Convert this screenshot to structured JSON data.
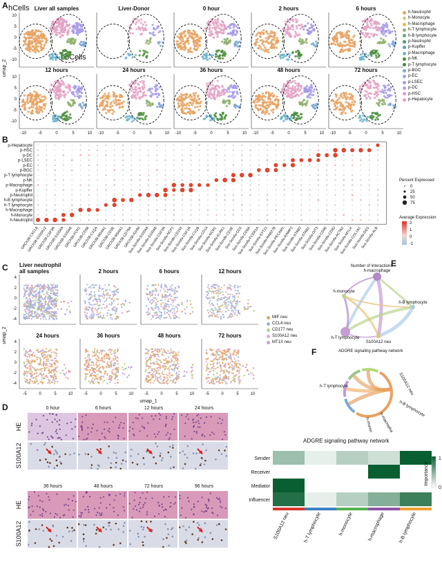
{
  "panelA": {
    "letter": "A",
    "hcells_label": "hCells",
    "pocells_label": "poCells",
    "titles": [
      "Liver all samples",
      "Liver-Donor",
      "0 hour",
      "2 hours",
      "6 hours",
      "12 hours",
      "24 hours",
      "36 hours",
      "48 hours",
      "72 hours"
    ],
    "ylabel": "umap_2",
    "yticks": [
      "10",
      "5",
      "0",
      "-5",
      "-10"
    ],
    "xticks": [
      "-10",
      "-5",
      "0",
      "5",
      "10"
    ],
    "legend": [
      {
        "label": "h-Neutrophil",
        "color": "#e8a262"
      },
      {
        "label": "h-Monocyte",
        "color": "#c6cf7c"
      },
      {
        "label": "h-Macrophage",
        "color": "#e7b94f"
      },
      {
        "label": "h-T lymphocyte",
        "color": "#8fb06d"
      },
      {
        "label": "h-B lymphocyte",
        "color": "#68a879"
      },
      {
        "label": "p-Neutrophil",
        "color": "#4f9a74"
      },
      {
        "label": "p-Kupffer",
        "color": "#5aa3b0"
      },
      {
        "label": "p-Macrophage",
        "color": "#6cb4cd"
      },
      {
        "label": "p-NK",
        "color": "#4f8e3f"
      },
      {
        "label": "p-T lymphocyte",
        "color": "#3f8a3a"
      },
      {
        "label": "p-BGC",
        "color": "#7fa9d8"
      },
      {
        "label": "p-EC",
        "color": "#95a7e4"
      },
      {
        "label": "p-LSEC",
        "color": "#a79be6"
      },
      {
        "label": "p-DC",
        "color": "#c09ae5"
      },
      {
        "label": "p-HSC",
        "color": "#d69bd8"
      },
      {
        "label": "p-Hepatocyte",
        "color": "#e3a2c4"
      }
    ]
  },
  "panelB": {
    "letter": "B",
    "rows": [
      "p-Hepatocyte",
      "p-HSC",
      "p-DC",
      "p-LSEC",
      "p-EC",
      "p-BGC",
      "p-T lymphocyte",
      "p-NK",
      "p-Macrophage",
      "p-Kupffer",
      "p-Neutrophil",
      "h-B lymphocyte",
      "h-T lymphocyte",
      "h-Macrophage",
      "h-Monocyte",
      "h-Neutrophil"
    ],
    "genes": [
      "GRCh38-CXCL8",
      "GRCh38-S100A12",
      "GRCh38-CSF3R",
      "GRCh38-S100A9",
      "GRCh38-S100A8",
      "GRCh38-FCN1",
      "GRCh38-CD68",
      "GRCh38-C1QA",
      "GRCh38-MS4A1",
      "GRCh38-CD3E",
      "GRCh38-MS4A1",
      "GRCh38-CD79A",
      "GRCh38-IGHM",
      "Sus-Scrofa-S100A9",
      "Sus-Scrofa-S100A8",
      "Sus-Scrofa-CSF3R",
      "Sus-Scrofa-NCF1",
      "Sus-Scrofa-CD163",
      "Sus-Scrofa-CSF1R",
      "Sus-Scrofa-C1QB",
      "Sus-Scrofa-CD14",
      "Sus-Scrofa-NCR1",
      "Sus-Scrofa-KLRK1",
      "Sus-Scrofa-CD3E",
      "Sus-Scrofa-CD2",
      "Sus-Scrofa-CD8A",
      "Sus-Scrofa-FCER1A",
      "Sus-Scrofa-SYT11",
      "Sus-Scrofa-RAB27B",
      "Sus-Scrofa-PECAM1",
      "Sus-Scrofa-RAMP2",
      "Sus-Scrofa-STAB2",
      "Sus-Scrofa-STAB1",
      "Sus-Scrofa-OIT3",
      "Sus-Scrofa-CD86",
      "Sus-Scrofa-CD83",
      "Sus-Scrofa-ACTA2",
      "Sus-Scrofa-MYLK",
      "Sus-Scrofa-COL1A1",
      "Sus-Scrofa-DES",
      "Sus-Scrofa-ALB"
    ],
    "size_legend_title": "Percent Expressed",
    "size_legend": [
      "0",
      "25",
      "50",
      "75"
    ],
    "color_legend_title": "Average Expression",
    "color_legend": [
      "2",
      "1",
      "0",
      "-1"
    ]
  },
  "panelC": {
    "letter": "C",
    "titles": [
      "Liver neutrophil\nall samples",
      "2 hours",
      "6 hours",
      "12 hours",
      "24 hours",
      "36 hours",
      "48 hours",
      "72 hours"
    ],
    "ylabel": "umap_2",
    "xlabel": "umap_1",
    "yticks": [
      "4",
      "2",
      "0",
      "-2",
      "-4"
    ],
    "xticks": [
      "-5",
      "0",
      "5",
      "10"
    ],
    "legend": [
      {
        "label": "MIF neu",
        "color": "#e6a46a"
      },
      {
        "label": "CCL4 neu",
        "color": "#9fb0de"
      },
      {
        "label": "CD177 neu",
        "color": "#b6d48a"
      },
      {
        "label": "S100A12 neu",
        "color": "#e9a7c7"
      },
      {
        "label": "MT1X neu",
        "color": "#c9a0dc"
      }
    ]
  },
  "panelD": {
    "letter": "D",
    "top_times": [
      "0 hour",
      "6 hours",
      "12 hours",
      "24 hours"
    ],
    "bottom_times": [
      "36 hours",
      "48 hours",
      "72 hours",
      "96 hours"
    ],
    "row_labels": [
      "HE",
      "S100A12",
      "HE",
      "S100A12"
    ]
  },
  "panelE": {
    "letter": "E",
    "title": "Number of interactions",
    "nodes": [
      "h-macrophage",
      "h-monocyte",
      "h-B lymphocyte",
      "h-T lymphocyte",
      "S100A12 neu"
    ]
  },
  "panelF": {
    "letter": "F",
    "title": "ADGRE signaling pathway network",
    "nodes": [
      "S100A12 neu",
      "h-T lymphocyte",
      "h-B lymphocyte",
      "h-macrophage",
      "h-monocyte"
    ]
  },
  "heatmap": {
    "title": "ADGRE signaling pathway network",
    "roles": [
      "Sender",
      "Receiver",
      "Mediator",
      "Influencer"
    ],
    "cells": [
      "S100A12 neu",
      "h-T lymphocyte",
      "h-monocyte",
      "h-macrophage",
      "h-B lymphocyte"
    ],
    "cell_colors": [
      "#d9352b",
      "#3b7fc4",
      "#55b150",
      "#8e52a5",
      "#f0a030"
    ],
    "values": [
      [
        0.4,
        0.1,
        0.3,
        0.2,
        1.0
      ],
      [
        0.0,
        0.0,
        0.0,
        1.0,
        0.0
      ],
      [
        1.0,
        0.0,
        0.0,
        0.0,
        0.0
      ],
      [
        0.9,
        0.1,
        0.3,
        0.5,
        0.8
      ]
    ],
    "legend_title": "Importance",
    "legend_ticks": [
      "1",
      "0"
    ]
  }
}
